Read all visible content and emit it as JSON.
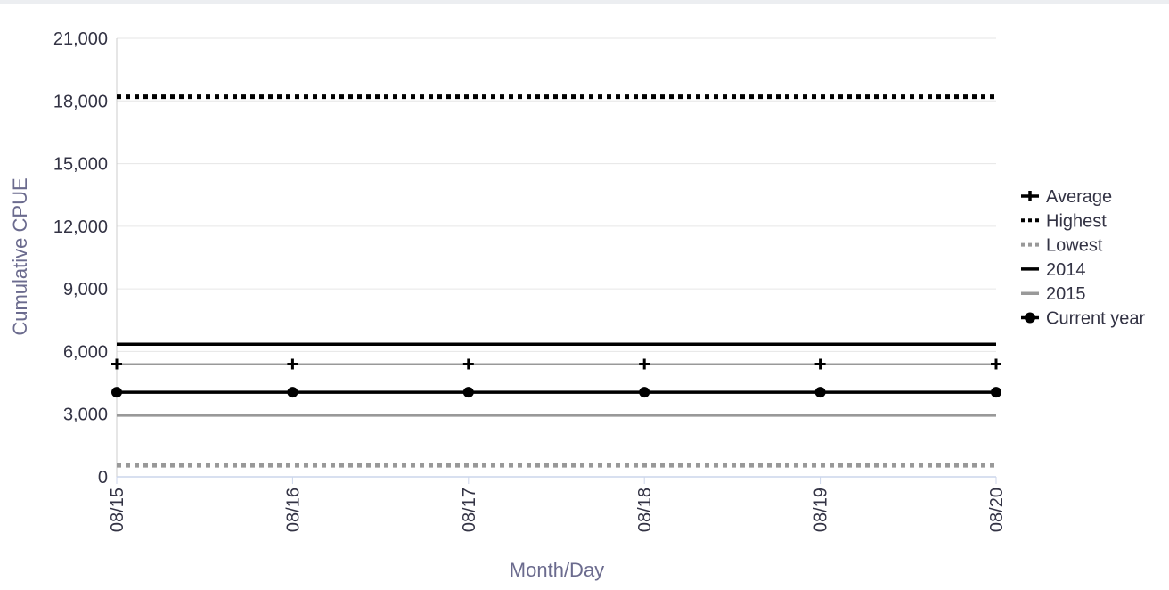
{
  "chart_data": {
    "type": "line",
    "title": "",
    "xlabel": "Month/Day",
    "ylabel": "Cumulative CPUE",
    "categories": [
      "08/15",
      "08/16",
      "08/17",
      "08/18",
      "08/19",
      "08/20"
    ],
    "ylim": [
      0,
      21000
    ],
    "yticks": [
      0,
      3000,
      6000,
      9000,
      12000,
      15000,
      18000,
      21000
    ],
    "ytick_labels": [
      "0",
      "3,000",
      "6,000",
      "9,000",
      "12,000",
      "15,000",
      "18,000",
      "21,000"
    ],
    "grid": true,
    "legend_position": "right",
    "series": [
      {
        "name": "Average",
        "values": [
          5400,
          5400,
          5400,
          5400,
          5400,
          5400
        ],
        "color": "#000000",
        "line_color": "#999999",
        "style": "solid",
        "marker": "plus"
      },
      {
        "name": "Highest",
        "values": [
          18200,
          18200,
          18200,
          18200,
          18200,
          18200
        ],
        "color": "#000000",
        "style": "dotted",
        "marker": "none"
      },
      {
        "name": "Lowest",
        "values": [
          550,
          550,
          550,
          550,
          550,
          550
        ],
        "color": "#999999",
        "style": "dotted",
        "marker": "none"
      },
      {
        "name": "2014",
        "values": [
          6350,
          6350,
          6350,
          6350,
          6350,
          6350
        ],
        "color": "#000000",
        "style": "solid",
        "marker": "none"
      },
      {
        "name": "2015",
        "values": [
          2950,
          2950,
          2950,
          2950,
          2950,
          2950
        ],
        "color": "#999999",
        "style": "solid",
        "marker": "none"
      },
      {
        "name": "Current year",
        "values": [
          4050,
          4050,
          4050,
          4050,
          4050,
          4050
        ],
        "color": "#000000",
        "style": "solid",
        "marker": "circle"
      }
    ]
  }
}
